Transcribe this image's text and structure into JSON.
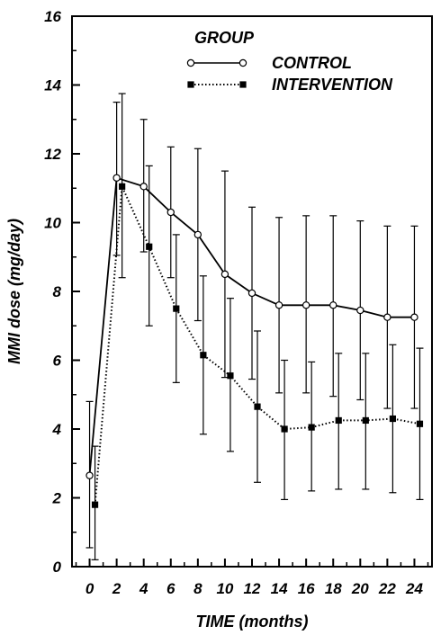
{
  "chart_data": {
    "type": "line",
    "xlabel": "TIME (months)",
    "ylabel": "MMI dose (mg/day)",
    "xlim": [
      -1.3,
      25.3
    ],
    "ylim": [
      0,
      16
    ],
    "xticks": [
      0,
      2,
      4,
      6,
      8,
      10,
      12,
      14,
      16,
      18,
      20,
      22,
      24
    ],
    "yticks": [
      0,
      2,
      4,
      6,
      8,
      10,
      12,
      14,
      16
    ],
    "legend_title": "GROUP",
    "legend_position": "top-right",
    "grid": false,
    "series": [
      {
        "name": "CONTROL",
        "marker": "open-circle",
        "line": "solid",
        "color": "#000000",
        "x": [
          0,
          2,
          4,
          6,
          8,
          10,
          12,
          14,
          16,
          18,
          20,
          22,
          24
        ],
        "y": [
          2.65,
          11.3,
          11.05,
          10.3,
          9.65,
          8.5,
          7.95,
          7.6,
          7.6,
          7.6,
          7.45,
          7.25,
          7.25
        ],
        "error_low": [
          0.55,
          9.05,
          9.15,
          8.4,
          7.15,
          5.5,
          5.45,
          5.05,
          5.05,
          4.95,
          4.85,
          4.6,
          4.6
        ],
        "error_high": [
          4.8,
          13.5,
          13.0,
          12.2,
          12.15,
          11.5,
          10.45,
          10.15,
          10.2,
          10.2,
          10.05,
          9.9,
          9.9
        ]
      },
      {
        "name": "INTERVENTION",
        "marker": "filled-square",
        "line": "dotted",
        "color": "#000000",
        "x": [
          0.4,
          2.4,
          4.4,
          6.4,
          8.4,
          10.4,
          12.4,
          14.4,
          16.4,
          18.4,
          20.4,
          22.4,
          24.4
        ],
        "y": [
          1.8,
          11.05,
          9.3,
          7.5,
          6.15,
          5.55,
          4.65,
          4.0,
          4.05,
          4.25,
          4.25,
          4.3,
          4.15
        ],
        "error_low": [
          0.2,
          8.4,
          7.0,
          5.35,
          3.85,
          3.35,
          2.45,
          1.95,
          2.2,
          2.25,
          2.25,
          2.15,
          1.95
        ],
        "error_high": [
          3.5,
          13.75,
          11.65,
          9.65,
          8.45,
          7.8,
          6.85,
          6.0,
          5.95,
          6.2,
          6.2,
          6.45,
          6.35
        ]
      }
    ]
  }
}
